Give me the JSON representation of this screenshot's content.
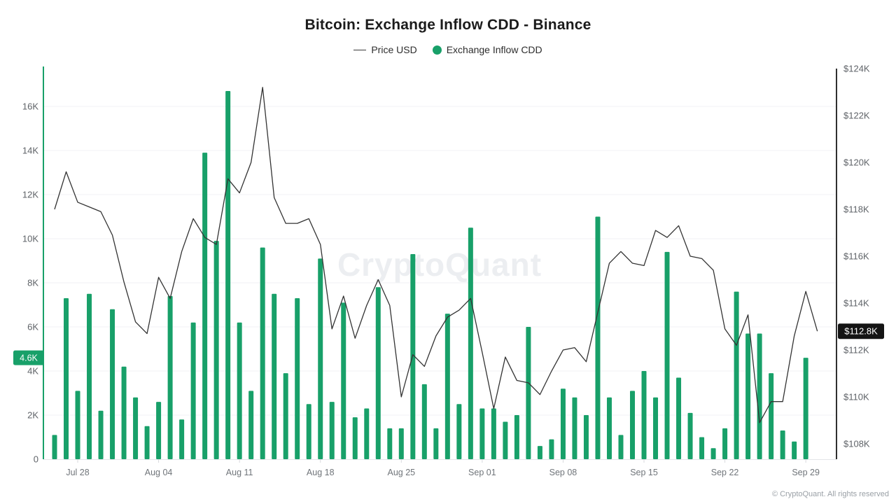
{
  "header": {
    "title": "Bitcoin: Exchange Inflow CDD - Binance",
    "legend": [
      {
        "label": "Price USD",
        "type": "line",
        "color": "#3a3a3a"
      },
      {
        "label": "Exchange Inflow CDD",
        "type": "dot",
        "color": "#18a069"
      }
    ]
  },
  "watermark": "CryptoQuant",
  "footer": {
    "copyright": "© CryptoQuant. All rights reserved"
  },
  "chart_data": {
    "type": "mixed",
    "title": "Bitcoin: Exchange Inflow CDD - Binance",
    "grid": true,
    "legend_position": "top",
    "categories": [
      "Jul 26",
      "Jul 27",
      "Jul 28",
      "Jul 29",
      "Jul 30",
      "Jul 31",
      "Aug 01",
      "Aug 02",
      "Aug 03",
      "Aug 04",
      "Aug 05",
      "Aug 06",
      "Aug 07",
      "Aug 08",
      "Aug 09",
      "Aug 10",
      "Aug 11",
      "Aug 12",
      "Aug 13",
      "Aug 14",
      "Aug 15",
      "Aug 16",
      "Aug 17",
      "Aug 18",
      "Aug 19",
      "Aug 20",
      "Aug 21",
      "Aug 22",
      "Aug 23",
      "Aug 24",
      "Aug 25",
      "Aug 26",
      "Aug 27",
      "Aug 28",
      "Aug 29",
      "Aug 30",
      "Aug 31",
      "Sep 01",
      "Sep 02",
      "Sep 03",
      "Sep 04",
      "Sep 05",
      "Sep 06",
      "Sep 07",
      "Sep 08",
      "Sep 09",
      "Sep 10",
      "Sep 11",
      "Sep 12",
      "Sep 13",
      "Sep 14",
      "Sep 15",
      "Sep 16",
      "Sep 17",
      "Sep 18",
      "Sep 19",
      "Sep 20",
      "Sep 21",
      "Sep 22",
      "Sep 23",
      "Sep 24",
      "Sep 25",
      "Sep 26",
      "Sep 27",
      "Sep 28",
      "Sep 29",
      "Sep 30"
    ],
    "series": [
      {
        "name": "Exchange Inflow CDD",
        "type": "bar",
        "axis": "left",
        "unit": "K",
        "color": "#18a069",
        "values": [
          1.1,
          7.3,
          3.1,
          7.5,
          2.2,
          6.8,
          4.2,
          2.8,
          1.5,
          2.6,
          7.4,
          1.8,
          6.2,
          13.9,
          9.9,
          16.7,
          6.2,
          3.1,
          9.6,
          7.5,
          3.9,
          7.3,
          2.5,
          9.1,
          2.6,
          7.1,
          1.9,
          2.3,
          7.8,
          1.4,
          1.4,
          9.3,
          3.4,
          1.4,
          6.6,
          2.5,
          10.5,
          2.3,
          2.3,
          1.7,
          2.0,
          6.0,
          0.6,
          0.9,
          3.2,
          2.8,
          2.0,
          11.0,
          2.8,
          1.1,
          3.1,
          4.0,
          2.8,
          9.4,
          3.7,
          2.1,
          1.0,
          0.5,
          1.4,
          7.6,
          5.7,
          5.7,
          3.9,
          1.3,
          0.8,
          4.6,
          null
        ]
      },
      {
        "name": "Price USD",
        "type": "line",
        "axis": "right",
        "unit": "K USD",
        "color": "#333333",
        "values": [
          118.0,
          119.6,
          118.3,
          118.1,
          117.9,
          116.9,
          114.9,
          113.2,
          112.7,
          115.1,
          114.2,
          116.2,
          117.6,
          116.8,
          116.5,
          119.3,
          118.7,
          120.0,
          123.2,
          118.5,
          117.4,
          117.4,
          117.6,
          116.5,
          112.9,
          114.3,
          112.5,
          113.9,
          115.0,
          113.9,
          110.0,
          111.8,
          111.3,
          112.6,
          113.4,
          113.7,
          114.2,
          111.9,
          109.5,
          111.7,
          110.7,
          110.6,
          110.1,
          111.1,
          112.0,
          112.1,
          111.5,
          113.6,
          115.7,
          116.2,
          115.7,
          115.6,
          117.1,
          116.8,
          117.3,
          116.0,
          115.9,
          115.4,
          112.9,
          112.2,
          113.5,
          108.9,
          109.8,
          109.8,
          112.6,
          114.5,
          112.8
        ]
      }
    ],
    "left_axis": {
      "ylim": [
        0,
        17.8
      ],
      "tick_labels": [
        "0",
        "2K",
        "4K",
        "6K",
        "8K",
        "10K",
        "12K",
        "14K",
        "16K"
      ],
      "tick_values": [
        0,
        2,
        4,
        6,
        8,
        10,
        12,
        14,
        16
      ],
      "current_badge": {
        "label": "4.6K",
        "value": 4.6,
        "color": "#18a069"
      }
    },
    "right_axis": {
      "ylim": [
        107.3,
        124.4
      ],
      "tick_labels": [
        "$108K",
        "$110K",
        "$112K",
        "$114K",
        "$116K",
        "$118K",
        "$120K",
        "$122K",
        "$124K"
      ],
      "tick_values": [
        108,
        110,
        112,
        114,
        116,
        118,
        120,
        122,
        124
      ],
      "current_badge": {
        "label": "$112.8K",
        "value": 112.8,
        "color": "#141414"
      }
    },
    "x_ticks": [
      {
        "label": "Jul 28",
        "index": 2
      },
      {
        "label": "Aug 04",
        "index": 9
      },
      {
        "label": "Aug 11",
        "index": 16
      },
      {
        "label": "Aug 18",
        "index": 23
      },
      {
        "label": "Aug 25",
        "index": 30
      },
      {
        "label": "Sep 01",
        "index": 37
      },
      {
        "label": "Sep 08",
        "index": 44
      },
      {
        "label": "Sep 15",
        "index": 51
      },
      {
        "label": "Sep 22",
        "index": 58
      },
      {
        "label": "Sep 29",
        "index": 65
      }
    ]
  }
}
